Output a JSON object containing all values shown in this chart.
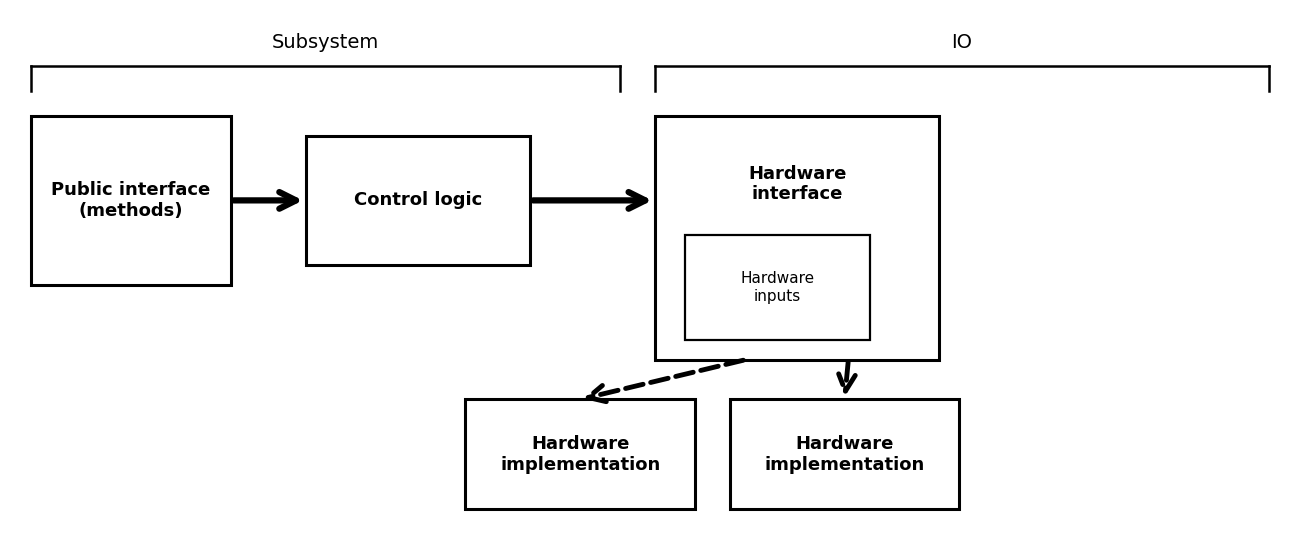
{
  "bg_color": "#ffffff",
  "title_font_size": 14,
  "label_font_size": 13,
  "small_font_size": 11,
  "subsystem_label": "Subsystem",
  "io_label": "IO",
  "box1_text": "Public interface\n(methods)",
  "box2_text": "Control logic",
  "box3_text": "Hardware\ninterface",
  "box4_text": "Hardware\ninputs",
  "box5_text": "Hardware\nimplementation",
  "box6_text": "Hardware\nimplementation",
  "lw_main": 2.2,
  "lw_inner": 1.6,
  "lw_bracket": 1.8,
  "lw_arrow_solid": 4.5,
  "lw_arrow_dashed": 3.5,
  "arrow_mutation": 30
}
